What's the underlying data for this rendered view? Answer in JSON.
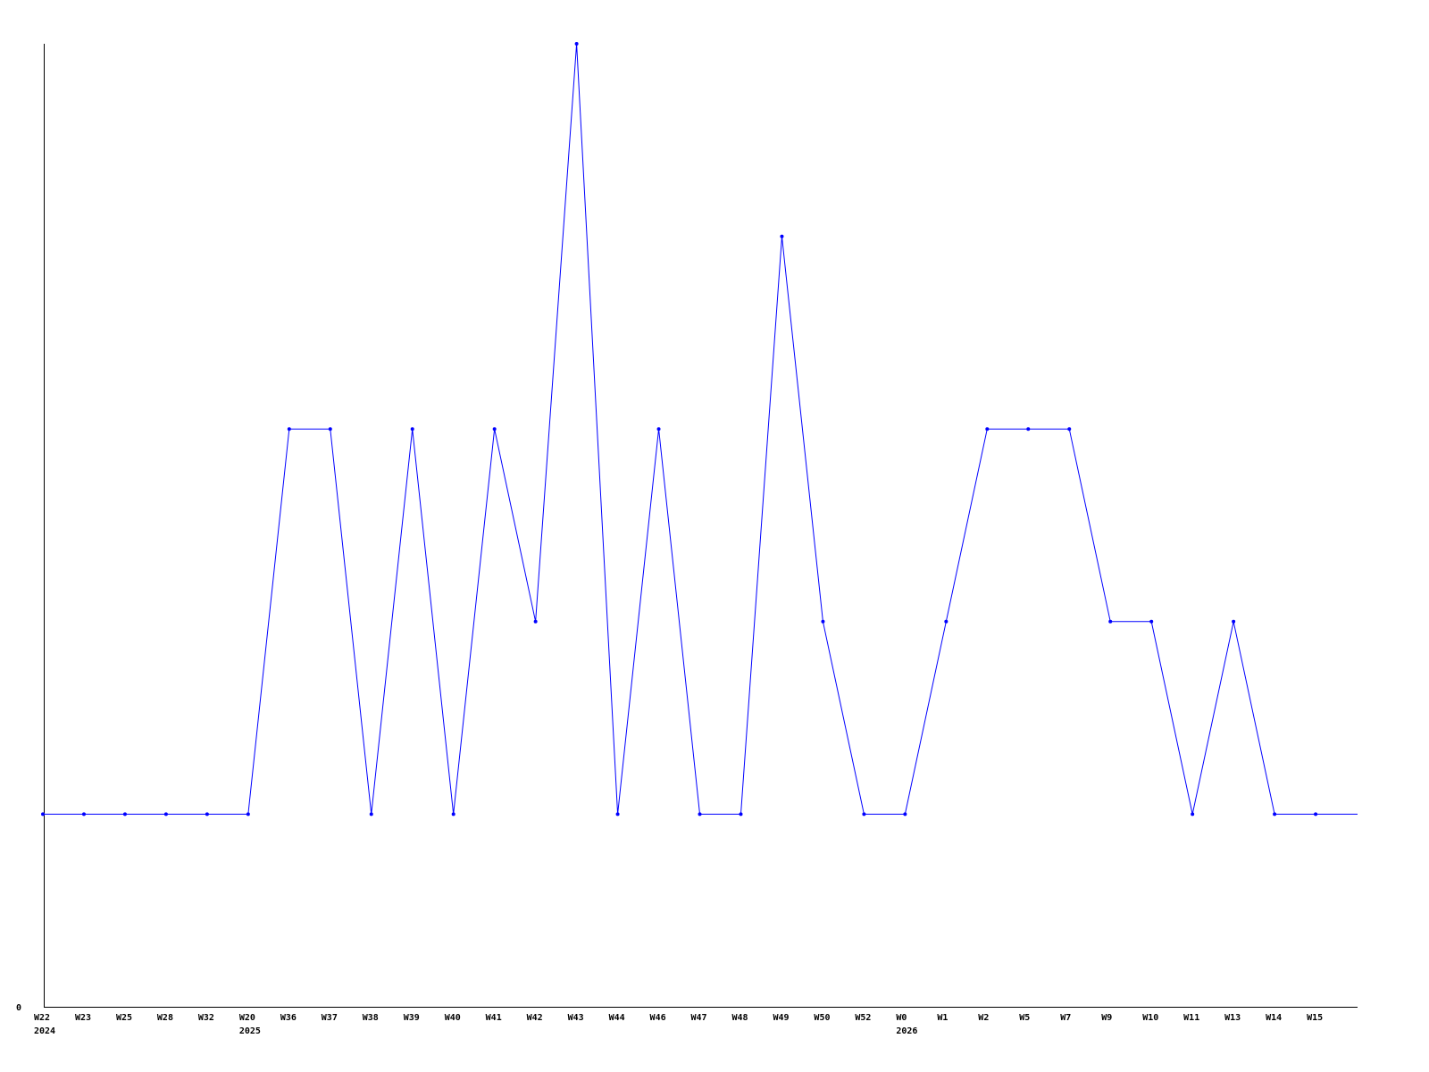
{
  "chart_data": {
    "type": "line",
    "title": "",
    "xlabel": "",
    "ylabel": "",
    "categories": [
      "W22",
      "W23",
      "W25",
      "W28",
      "W32",
      "W20",
      "W36",
      "W37",
      "W38",
      "W39",
      "W40",
      "W41",
      "W42",
      "W43",
      "W44",
      "W46",
      "W47",
      "W48",
      "W49",
      "W50",
      "W52",
      "W0",
      "W1",
      "W2",
      "W5",
      "W7",
      "W9",
      "W10",
      "W11",
      "W13",
      "W14",
      "W15"
    ],
    "year_labels": [
      {
        "index": 0,
        "label": "2024"
      },
      {
        "index": 5,
        "label": "2025"
      },
      {
        "index": 21,
        "label": "2026"
      }
    ],
    "values": [
      1,
      1,
      1,
      1,
      1,
      1,
      3,
      3,
      1,
      3,
      1,
      3,
      2,
      5,
      1,
      3,
      1,
      1,
      4,
      2,
      1,
      1,
      2,
      3,
      3,
      3,
      2,
      2,
      1,
      2,
      1,
      1
    ],
    "y_tick_labels": [
      "0"
    ],
    "ylim": [
      0,
      5
    ],
    "grid": false,
    "line_color": "#0000ff",
    "axis_color": "#000000"
  }
}
